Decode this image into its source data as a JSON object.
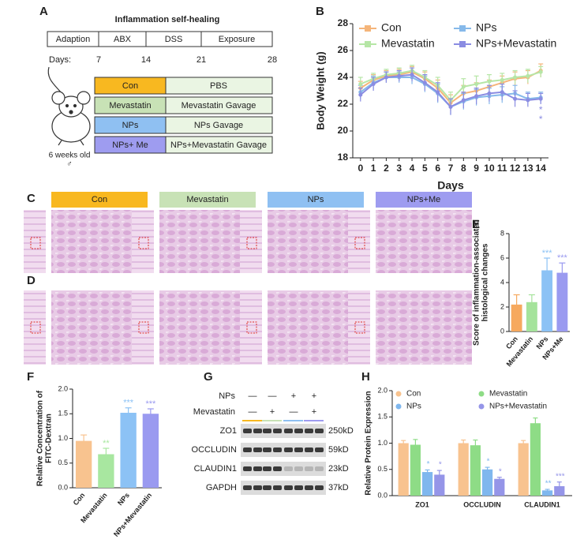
{
  "panel_labels": [
    "A",
    "B",
    "C",
    "D",
    "E",
    "F",
    "G",
    "H"
  ],
  "schematic": {
    "title": "Inflammation self-healing",
    "phases": [
      "Adaption",
      "ABX",
      "DSS",
      "Exposure"
    ],
    "days_label": "Days:",
    "days": [
      "7",
      "14",
      "21",
      "28"
    ],
    "mouse_label": "6 weeks old",
    "sex": "♂",
    "groups": [
      {
        "name": "Con",
        "treatment": "PBS",
        "color": "#f8b820"
      },
      {
        "name": "Mevastatin",
        "treatment": "Mevastatin Gavage",
        "color": "#c8e2b6"
      },
      {
        "name": "NPs",
        "treatment": "NPs Gavage",
        "color": "#8fc0f2"
      },
      {
        "name": "NPs+ Me",
        "treatment": "NPs+Mevastatin Gavage",
        "color": "#9e9cf0"
      }
    ]
  },
  "histology": {
    "groups": [
      {
        "name": "Con",
        "color": "#f8b820"
      },
      {
        "name": "Mevastatin",
        "color": "#c8e2b6"
      },
      {
        "name": "NPs",
        "color": "#8fc0f2"
      },
      {
        "name": "NPs+Me",
        "color": "#9e9cf0"
      }
    ]
  },
  "blot": {
    "conditions": [
      {
        "name": "NPs",
        "signs": [
          "—",
          "—",
          "+",
          "+"
        ]
      },
      {
        "name": "Mevastatin",
        "signs": [
          "—",
          "+",
          "—",
          "+"
        ]
      }
    ],
    "bands": [
      {
        "name": "ZO1",
        "size": "250kD"
      },
      {
        "name": "OCCLUDIN",
        "size": "59kD"
      },
      {
        "name": "CLAUDIN1",
        "size": "23kD"
      },
      {
        "name": "GAPDH",
        "size": "37kD"
      }
    ]
  },
  "chart_data": [
    {
      "type": "line",
      "xlabel": "Days",
      "ylabel": "Body Weight (g)",
      "x": [
        0,
        1,
        2,
        3,
        4,
        5,
        6,
        7,
        8,
        9,
        10,
        11,
        12,
        13,
        14
      ],
      "xlim": [
        -0.6,
        14.6
      ],
      "xticks": [
        0,
        1,
        2,
        3,
        4,
        5,
        6,
        7,
        8,
        9,
        10,
        11,
        12,
        13,
        14
      ],
      "ylim": [
        18,
        28
      ],
      "yticks": [
        18,
        20,
        22,
        24,
        26,
        28
      ],
      "series": [
        {
          "name": "Con",
          "color": "#f5b57a",
          "values": [
            23.2,
            23.8,
            24.1,
            24.2,
            24.4,
            23.9,
            23.2,
            22.1,
            22.8,
            23.0,
            23.3,
            23.6,
            23.9,
            24.0,
            24.5
          ],
          "errors": [
            0.5,
            0.4,
            0.4,
            0.4,
            0.4,
            0.5,
            0.6,
            0.6,
            0.6,
            0.6,
            0.5,
            0.5,
            0.5,
            0.5,
            0.5
          ]
        },
        {
          "name": "NPs",
          "color": "#86b9ea",
          "values": [
            22.9,
            23.6,
            24.0,
            24.0,
            24.0,
            23.5,
            22.8,
            21.8,
            22.2,
            22.5,
            22.6,
            22.7,
            22.8,
            22.4,
            22.5
          ],
          "errors": [
            0.5,
            0.5,
            0.4,
            0.4,
            0.5,
            0.6,
            0.7,
            0.6,
            0.6,
            0.6,
            0.6,
            0.6,
            0.6,
            0.5,
            0.4
          ]
        },
        {
          "name": "Mevastatin",
          "color": "#b6e6a6",
          "values": [
            23.5,
            23.9,
            24.2,
            24.3,
            24.5,
            24.0,
            23.4,
            22.3,
            23.3,
            23.5,
            23.7,
            23.8,
            24.0,
            24.1,
            24.4
          ],
          "errors": [
            0.5,
            0.4,
            0.4,
            0.4,
            0.4,
            0.5,
            0.6,
            0.6,
            0.6,
            0.6,
            0.5,
            0.5,
            0.5,
            0.5,
            0.4
          ]
        },
        {
          "name": "NPs+Mevastatin",
          "color": "#8a8ce2",
          "values": [
            22.7,
            23.5,
            24.0,
            24.1,
            24.2,
            23.6,
            22.9,
            21.8,
            22.3,
            22.6,
            22.8,
            22.9,
            22.4,
            22.3,
            22.4
          ],
          "errors": [
            0.5,
            0.5,
            0.4,
            0.4,
            0.5,
            0.6,
            0.7,
            0.6,
            0.6,
            0.6,
            0.6,
            0.6,
            0.6,
            0.5,
            0.4
          ]
        }
      ],
      "annotations": [
        "*",
        "*"
      ]
    },
    {
      "type": "bar",
      "ylabel": [
        "Score of inflammation-associated",
        "histological changes"
      ],
      "categories": [
        "Con",
        "Mevastatin",
        "NPs",
        "NPs+Me"
      ],
      "values": [
        2.2,
        2.4,
        5.0,
        4.8
      ],
      "errors": [
        0.8,
        0.6,
        1.0,
        0.8
      ],
      "colors": [
        "#f6a95e",
        "#a5e39b",
        "#8cc2f5",
        "#9a9af0"
      ],
      "significance": [
        null,
        null,
        "***",
        "***"
      ],
      "ylim": [
        0,
        8
      ],
      "yticks": [
        0,
        2,
        4,
        6,
        8
      ]
    },
    {
      "type": "bar",
      "ylabel": [
        "Relative Concentration of",
        "FITC-Dextran"
      ],
      "categories": [
        "Con",
        "Mevastatin",
        "NPs",
        "NPs+Mevastatin"
      ],
      "values": [
        0.95,
        0.68,
        1.52,
        1.5
      ],
      "errors": [
        0.12,
        0.12,
        0.1,
        0.1
      ],
      "colors": [
        "#f8c38f",
        "#a8e7a0",
        "#8cc2f5",
        "#9a9af0"
      ],
      "significance": [
        null,
        "**",
        "***",
        "***"
      ],
      "ylim": [
        0,
        2
      ],
      "yticks": [
        {
          "value": 0,
          "label": "0.0"
        },
        {
          "value": 0.5,
          "label": "0.5"
        },
        {
          "value": 1,
          "label": "1.0"
        },
        {
          "value": 1.5,
          "label": "1.5"
        },
        {
          "value": 2,
          "label": "2.0"
        }
      ]
    },
    {
      "type": "grouped_bar",
      "ylabel": "Relative Protein Expression",
      "categories": [
        "ZO1",
        "OCCLUDIN",
        "CLAUDIN1"
      ],
      "series": [
        {
          "name": "Con",
          "color": "#f8c38f",
          "values": [
            1.0,
            1.0,
            1.0
          ],
          "errors": [
            0.05,
            0.06,
            0.05
          ],
          "significance": [
            null,
            null,
            null
          ]
        },
        {
          "name": "Mevastatin",
          "color": "#8edc86",
          "values": [
            0.97,
            0.96,
            1.38
          ],
          "errors": [
            0.1,
            0.1,
            0.1
          ],
          "significance": [
            null,
            null,
            null
          ]
        },
        {
          "name": "NPs",
          "color": "#7fb7ee",
          "values": [
            0.45,
            0.5,
            0.1
          ],
          "errors": [
            0.04,
            0.04,
            0.02
          ],
          "significance": [
            "*",
            "*",
            "**"
          ]
        },
        {
          "name": "NPs+Mevastatin",
          "color": "#9595e8",
          "values": [
            0.4,
            0.32,
            0.18
          ],
          "errors": [
            0.08,
            0.03,
            0.08
          ],
          "significance": [
            "*",
            "*",
            "***"
          ]
        }
      ],
      "ylim": [
        0,
        2
      ],
      "yticks": [
        {
          "value": 0,
          "label": "0.0"
        },
        {
          "value": 0.5,
          "label": "0.5"
        },
        {
          "value": 1,
          "label": "1.0"
        },
        {
          "value": 1.5,
          "label": "1.5"
        },
        {
          "value": 2,
          "label": "2.0"
        }
      ]
    }
  ]
}
